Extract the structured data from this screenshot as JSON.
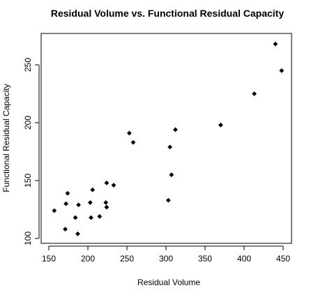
{
  "chart_data": {
    "type": "scatter",
    "title": "Residual Volume vs. Functional Residual Capacity",
    "xlabel": "Residual Volume",
    "ylabel": "Functional Residual Capacity",
    "xlim": [
      150,
      450
    ],
    "ylim": [
      100,
      270
    ],
    "xticks": [
      "150",
      "200",
      "250",
      "300",
      "350",
      "400",
      "450"
    ],
    "yticks": [
      "100",
      "150",
      "200",
      "250"
    ],
    "grid": false,
    "legend": "none",
    "marker": "filled-diamond",
    "points": [
      {
        "x": 157,
        "y": 124
      },
      {
        "x": 171,
        "y": 108
      },
      {
        "x": 172,
        "y": 130
      },
      {
        "x": 174,
        "y": 139
      },
      {
        "x": 184,
        "y": 118
      },
      {
        "x": 187,
        "y": 104
      },
      {
        "x": 188,
        "y": 129
      },
      {
        "x": 203,
        "y": 131
      },
      {
        "x": 204,
        "y": 118
      },
      {
        "x": 206,
        "y": 142
      },
      {
        "x": 215,
        "y": 119
      },
      {
        "x": 223,
        "y": 131
      },
      {
        "x": 224,
        "y": 127
      },
      {
        "x": 224,
        "y": 148
      },
      {
        "x": 233,
        "y": 146
      },
      {
        "x": 253,
        "y": 191
      },
      {
        "x": 258,
        "y": 183
      },
      {
        "x": 303,
        "y": 133
      },
      {
        "x": 305,
        "y": 179
      },
      {
        "x": 307,
        "y": 155
      },
      {
        "x": 312,
        "y": 194
      },
      {
        "x": 370,
        "y": 198
      },
      {
        "x": 413,
        "y": 225
      },
      {
        "x": 440,
        "y": 268
      },
      {
        "x": 448,
        "y": 245
      }
    ]
  }
}
